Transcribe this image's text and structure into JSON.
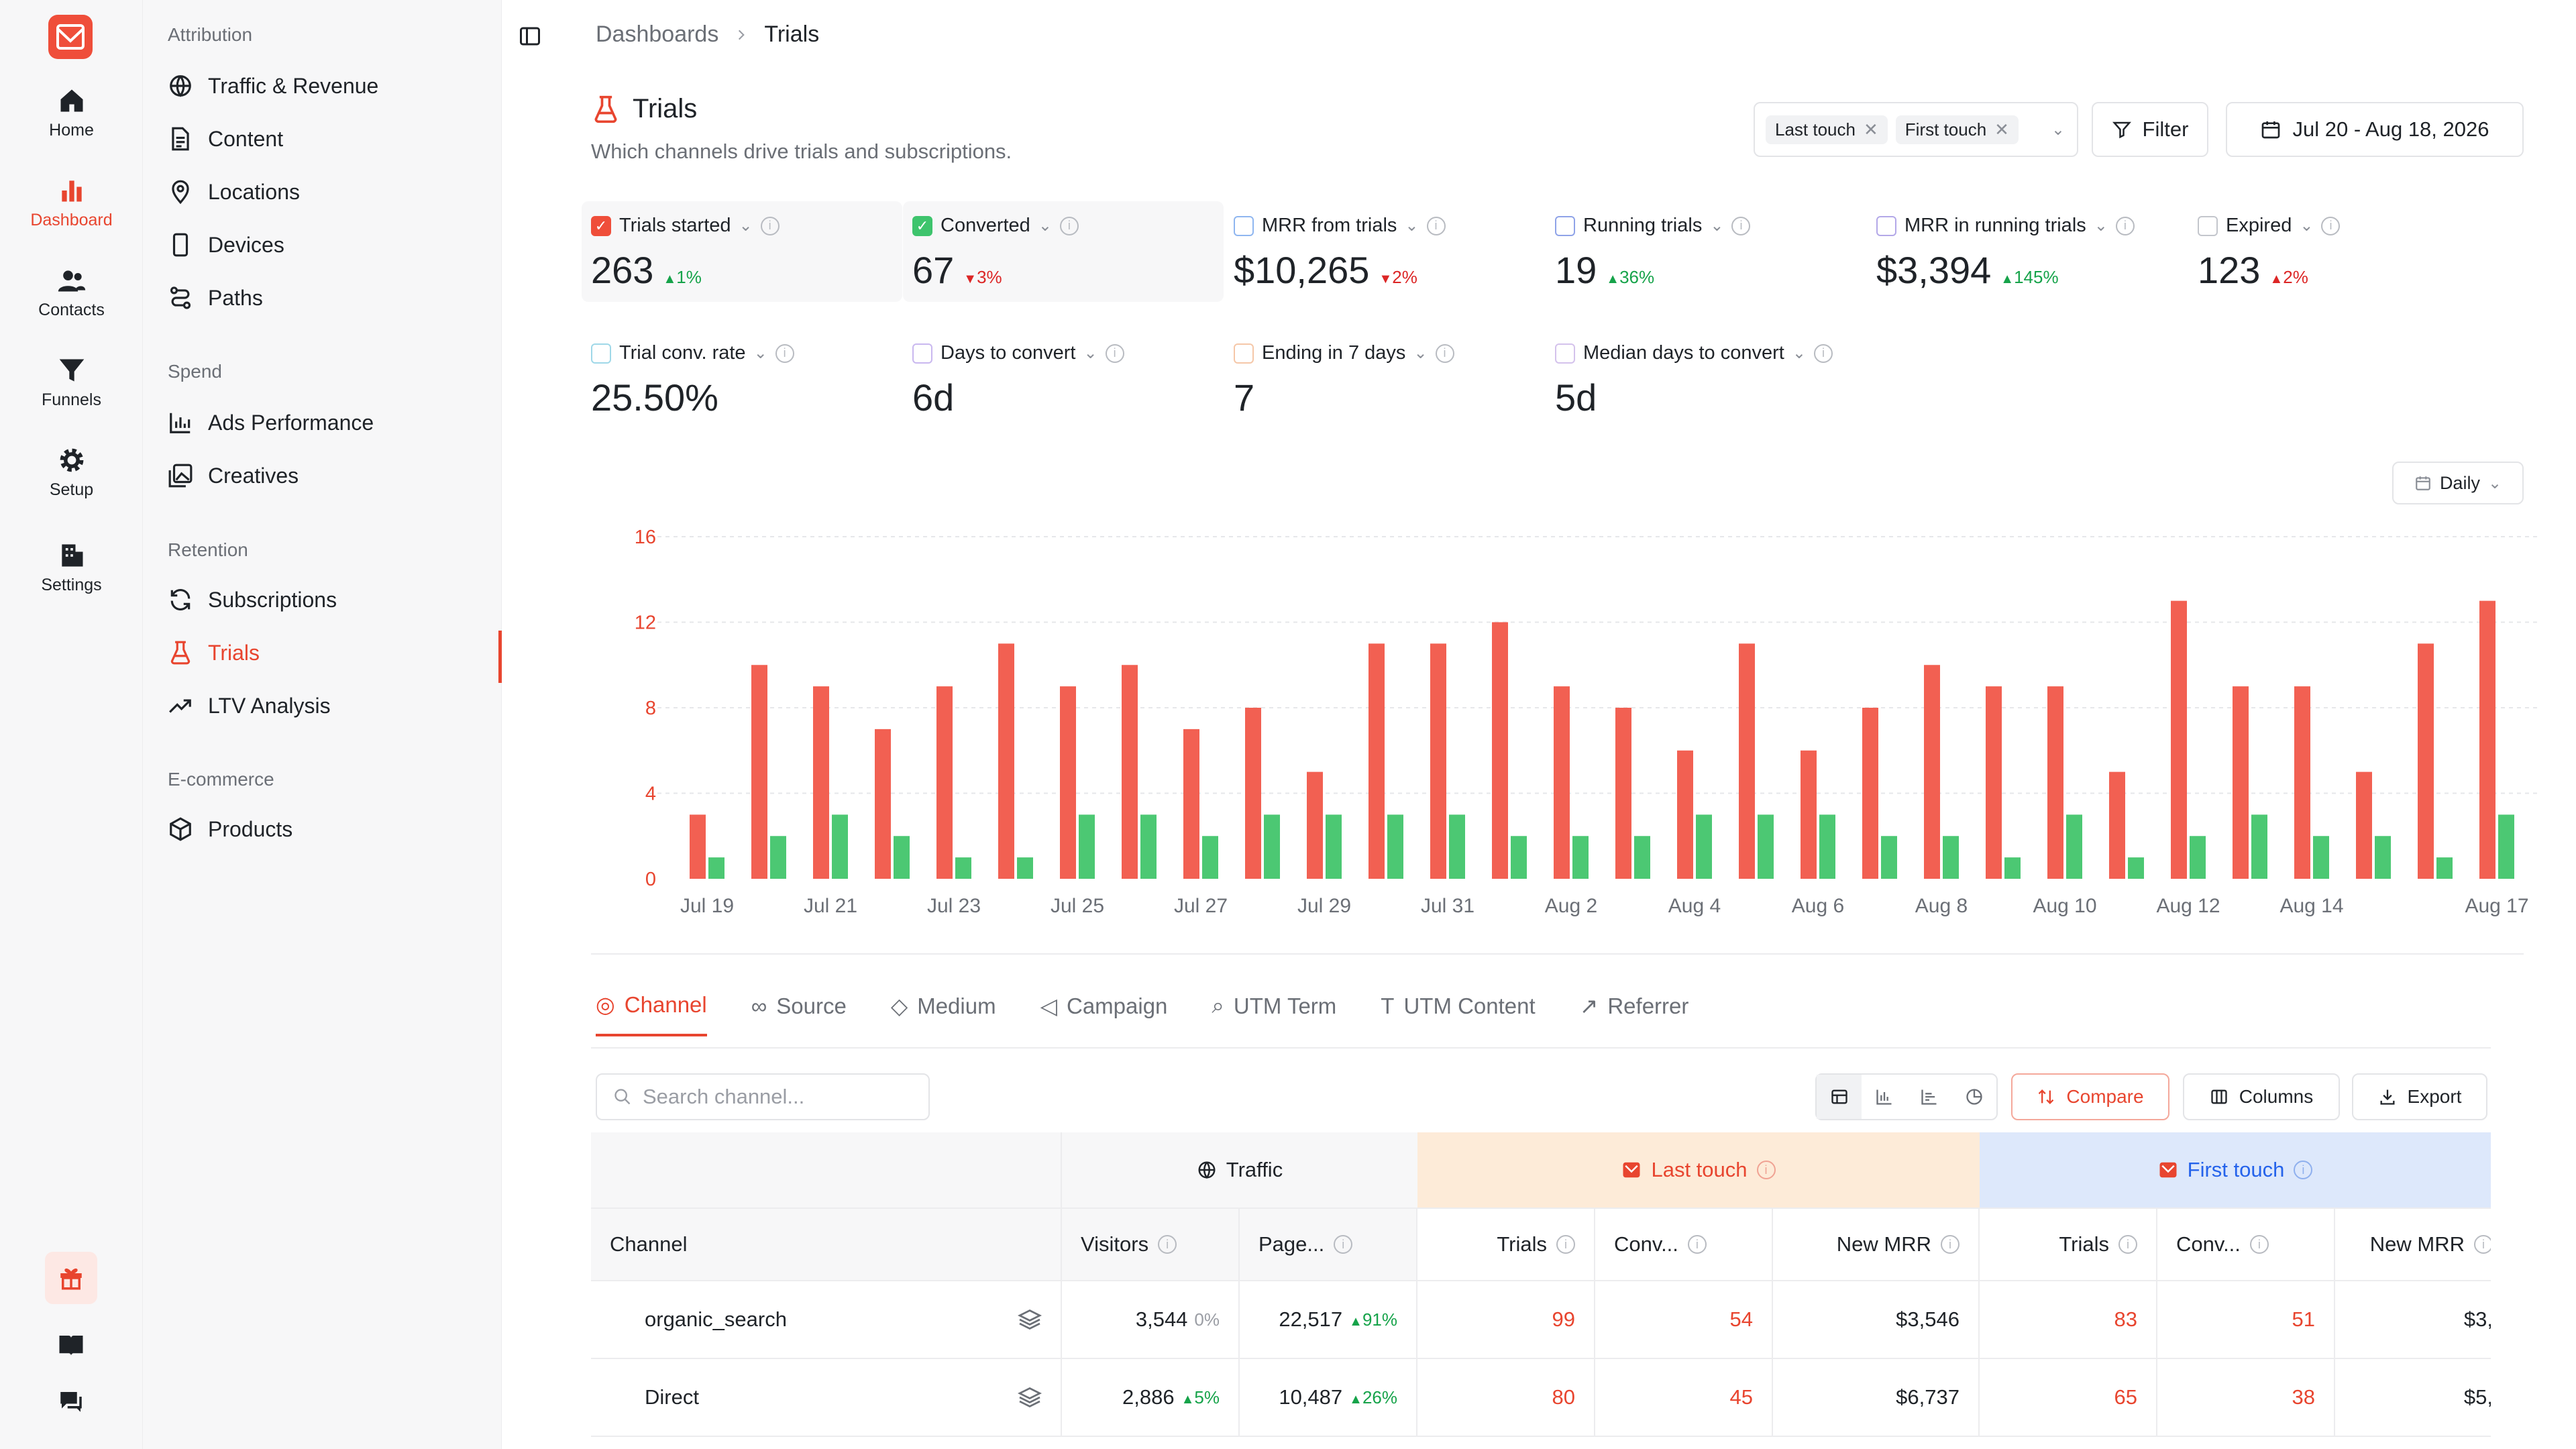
{
  "nav_rail": {
    "items": [
      {
        "label": "Home",
        "icon": "home-icon"
      },
      {
        "label": "Dashboard",
        "icon": "bar-chart-icon",
        "active": true
      },
      {
        "label": "Contacts",
        "icon": "users-icon"
      },
      {
        "label": "Funnels",
        "icon": "funnel-icon"
      },
      {
        "label": "Setup",
        "icon": "gear-icon"
      },
      {
        "label": "Settings",
        "icon": "building-icon"
      }
    ]
  },
  "sidebar": {
    "sections": [
      {
        "title": "Attribution",
        "items": [
          "Traffic & Revenue",
          "Content",
          "Locations",
          "Devices",
          "Paths"
        ]
      },
      {
        "title": "Spend",
        "items": [
          "Ads Performance",
          "Creatives"
        ]
      },
      {
        "title": "Retention",
        "items": [
          "Subscriptions",
          "Trials",
          "LTV Analysis"
        ]
      },
      {
        "title": "E-commerce",
        "items": [
          "Products"
        ]
      }
    ],
    "active_item": "Trials"
  },
  "breadcrumb": {
    "parent": "Dashboards",
    "current": "Trials"
  },
  "page": {
    "title": "Trials",
    "subtitle": "Which channels drive trials and subscriptions."
  },
  "toolbar": {
    "chips": [
      "Last touch",
      "First touch"
    ],
    "filter_label": "Filter",
    "date_range": "Jul 20 - Aug 18, 2026"
  },
  "metrics": [
    {
      "label": "Trials started",
      "value": "263",
      "delta": "1%",
      "direction": "up",
      "checked": true,
      "color": "#ef4e3a"
    },
    {
      "label": "Converted",
      "value": "67",
      "delta": "3%",
      "direction": "down",
      "checked": true,
      "color": "#3ec46d"
    },
    {
      "label": "MRR from trials",
      "value": "$10,265",
      "delta": "2%",
      "direction": "down",
      "checked": false,
      "color": "#8fb6f0"
    },
    {
      "label": "Running trials",
      "value": "19",
      "delta": "36%",
      "direction": "up",
      "checked": false,
      "color": "#8fa3e8"
    },
    {
      "label": "MRR in running trials",
      "value": "$3,394",
      "delta": "145%",
      "direction": "up",
      "checked": false,
      "color": "#b3a8e8"
    },
    {
      "label": "Expired",
      "value": "123",
      "delta": "2%",
      "direction": "up",
      "checked": false,
      "color": "#c3c6cc",
      "delta_color": "red"
    },
    {
      "label": "Trial conv. rate",
      "value": "25.50%",
      "delta": "",
      "direction": "",
      "checked": false,
      "color": "#9fd8e8"
    },
    {
      "label": "Days to convert",
      "value": "6d",
      "delta": "",
      "direction": "",
      "checked": false,
      "color": "#c9b8ef"
    },
    {
      "label": "Ending in 7 days",
      "value": "7",
      "delta": "",
      "direction": "",
      "checked": false,
      "color": "#f5c7a8"
    },
    {
      "label": "Median days to convert",
      "value": "5d",
      "delta": "",
      "direction": "",
      "checked": false,
      "color": "#d4c2ec"
    }
  ],
  "granularity": "Daily",
  "chart_data": {
    "type": "bar",
    "x_tick_labels": [
      "Jul 19",
      "Jul 21",
      "Jul 23",
      "Jul 25",
      "Jul 27",
      "Jul 29",
      "Jul 31",
      "Aug 2",
      "Aug 4",
      "Aug 6",
      "Aug 8",
      "Aug 10",
      "Aug 12",
      "Aug 14",
      "Aug 17"
    ],
    "x_tick_index": [
      0,
      2,
      4,
      6,
      8,
      10,
      12,
      14,
      16,
      18,
      20,
      22,
      24,
      26,
      29
    ],
    "categories": [
      "Jul 19",
      "Jul 20",
      "Jul 21",
      "Jul 22",
      "Jul 23",
      "Jul 24",
      "Jul 25",
      "Jul 26",
      "Jul 27",
      "Jul 28",
      "Jul 29",
      "Jul 30",
      "Jul 31",
      "Aug 1",
      "Aug 2",
      "Aug 3",
      "Aug 4",
      "Aug 5",
      "Aug 6",
      "Aug 7",
      "Aug 8",
      "Aug 9",
      "Aug 10",
      "Aug 11",
      "Aug 12",
      "Aug 13",
      "Aug 14",
      "Aug 15",
      "Aug 16",
      "Aug 17"
    ],
    "series": [
      {
        "name": "Trials started",
        "color": "#f26052",
        "values": [
          3,
          10,
          9,
          7,
          9,
          11,
          9,
          10,
          7,
          8,
          5,
          11,
          11,
          12,
          9,
          8,
          6,
          11,
          6,
          8,
          10,
          9,
          9,
          5,
          13,
          9,
          9,
          5,
          11,
          13
        ]
      },
      {
        "name": "Converted",
        "color": "#4cc873",
        "values": [
          1,
          2,
          3,
          2,
          1,
          1,
          3,
          3,
          2,
          3,
          3,
          3,
          3,
          2,
          2,
          2,
          3,
          3,
          3,
          2,
          2,
          1,
          3,
          1,
          2,
          3,
          2,
          2,
          1,
          3
        ]
      }
    ],
    "y_ticks": [
      0,
      4,
      8,
      12,
      16
    ],
    "ylim": [
      0,
      16
    ],
    "grid": true
  },
  "tabs": [
    {
      "label": "Channel",
      "icon": "globe-icon",
      "active": true
    },
    {
      "label": "Source",
      "icon": "link-icon"
    },
    {
      "label": "Medium",
      "icon": "tag-icon"
    },
    {
      "label": "Campaign",
      "icon": "megaphone-icon"
    },
    {
      "label": "UTM Term",
      "icon": "search-icon"
    },
    {
      "label": "UTM Content",
      "icon": "text-icon"
    },
    {
      "label": "Referrer",
      "icon": "external-link-icon"
    }
  ],
  "table_controls": {
    "search_placeholder": "Search channel...",
    "compare_label": "Compare",
    "columns_label": "Columns",
    "export_label": "Export"
  },
  "table": {
    "groups": {
      "traffic": "Traffic",
      "last_touch": "Last touch",
      "first_touch": "First touch"
    },
    "columns": [
      "Channel",
      "Visitors",
      "Page...",
      "Trials",
      "Conv...",
      "New MRR",
      "Trials",
      "Conv...",
      "New MRR"
    ],
    "rows": [
      {
        "channel": "organic_search",
        "visitors": "3,544",
        "visitors_delta": "0%",
        "visitors_dir": "flat",
        "pages": "22,517",
        "pages_delta": "91%",
        "pages_dir": "up",
        "lt_trials": "99",
        "lt_conv": "54",
        "lt_mrr": "$3,546",
        "ft_trials": "83",
        "ft_conv": "51",
        "ft_mrr": "$3,"
      },
      {
        "channel": "Direct",
        "visitors": "2,886",
        "visitors_delta": "5%",
        "visitors_dir": "up",
        "pages": "10,487",
        "pages_delta": "26%",
        "pages_dir": "up",
        "lt_trials": "80",
        "lt_conv": "45",
        "lt_mrr": "$6,737",
        "ft_trials": "65",
        "ft_conv": "38",
        "ft_mrr": "$5,"
      }
    ]
  },
  "colors": {
    "accent": "#e8452f",
    "up": "#16a34a",
    "down": "#dc2626",
    "last_touch_bg": "#fdebd8",
    "first_touch_bg": "#dde8fb"
  }
}
